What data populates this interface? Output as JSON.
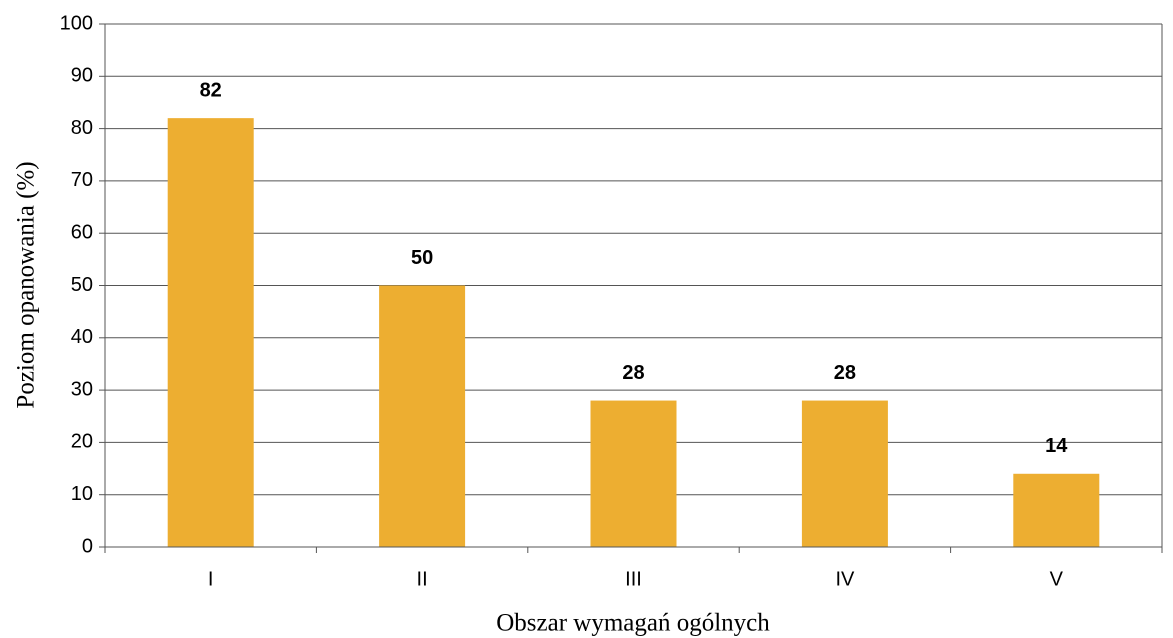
{
  "chart_data": {
    "type": "bar",
    "x_label": "Obszar wymagań ogólnych",
    "y_label": "Poziom opanowania (%)",
    "categories": [
      "I",
      "II",
      "III",
      "IV",
      "V"
    ],
    "values": [
      82,
      50,
      28,
      28,
      14
    ],
    "color": "#edae31",
    "ylim": [
      0,
      100
    ],
    "yticks": [
      0,
      10,
      20,
      30,
      40,
      50,
      60,
      70,
      80,
      90,
      100
    ],
    "grid": true
  }
}
